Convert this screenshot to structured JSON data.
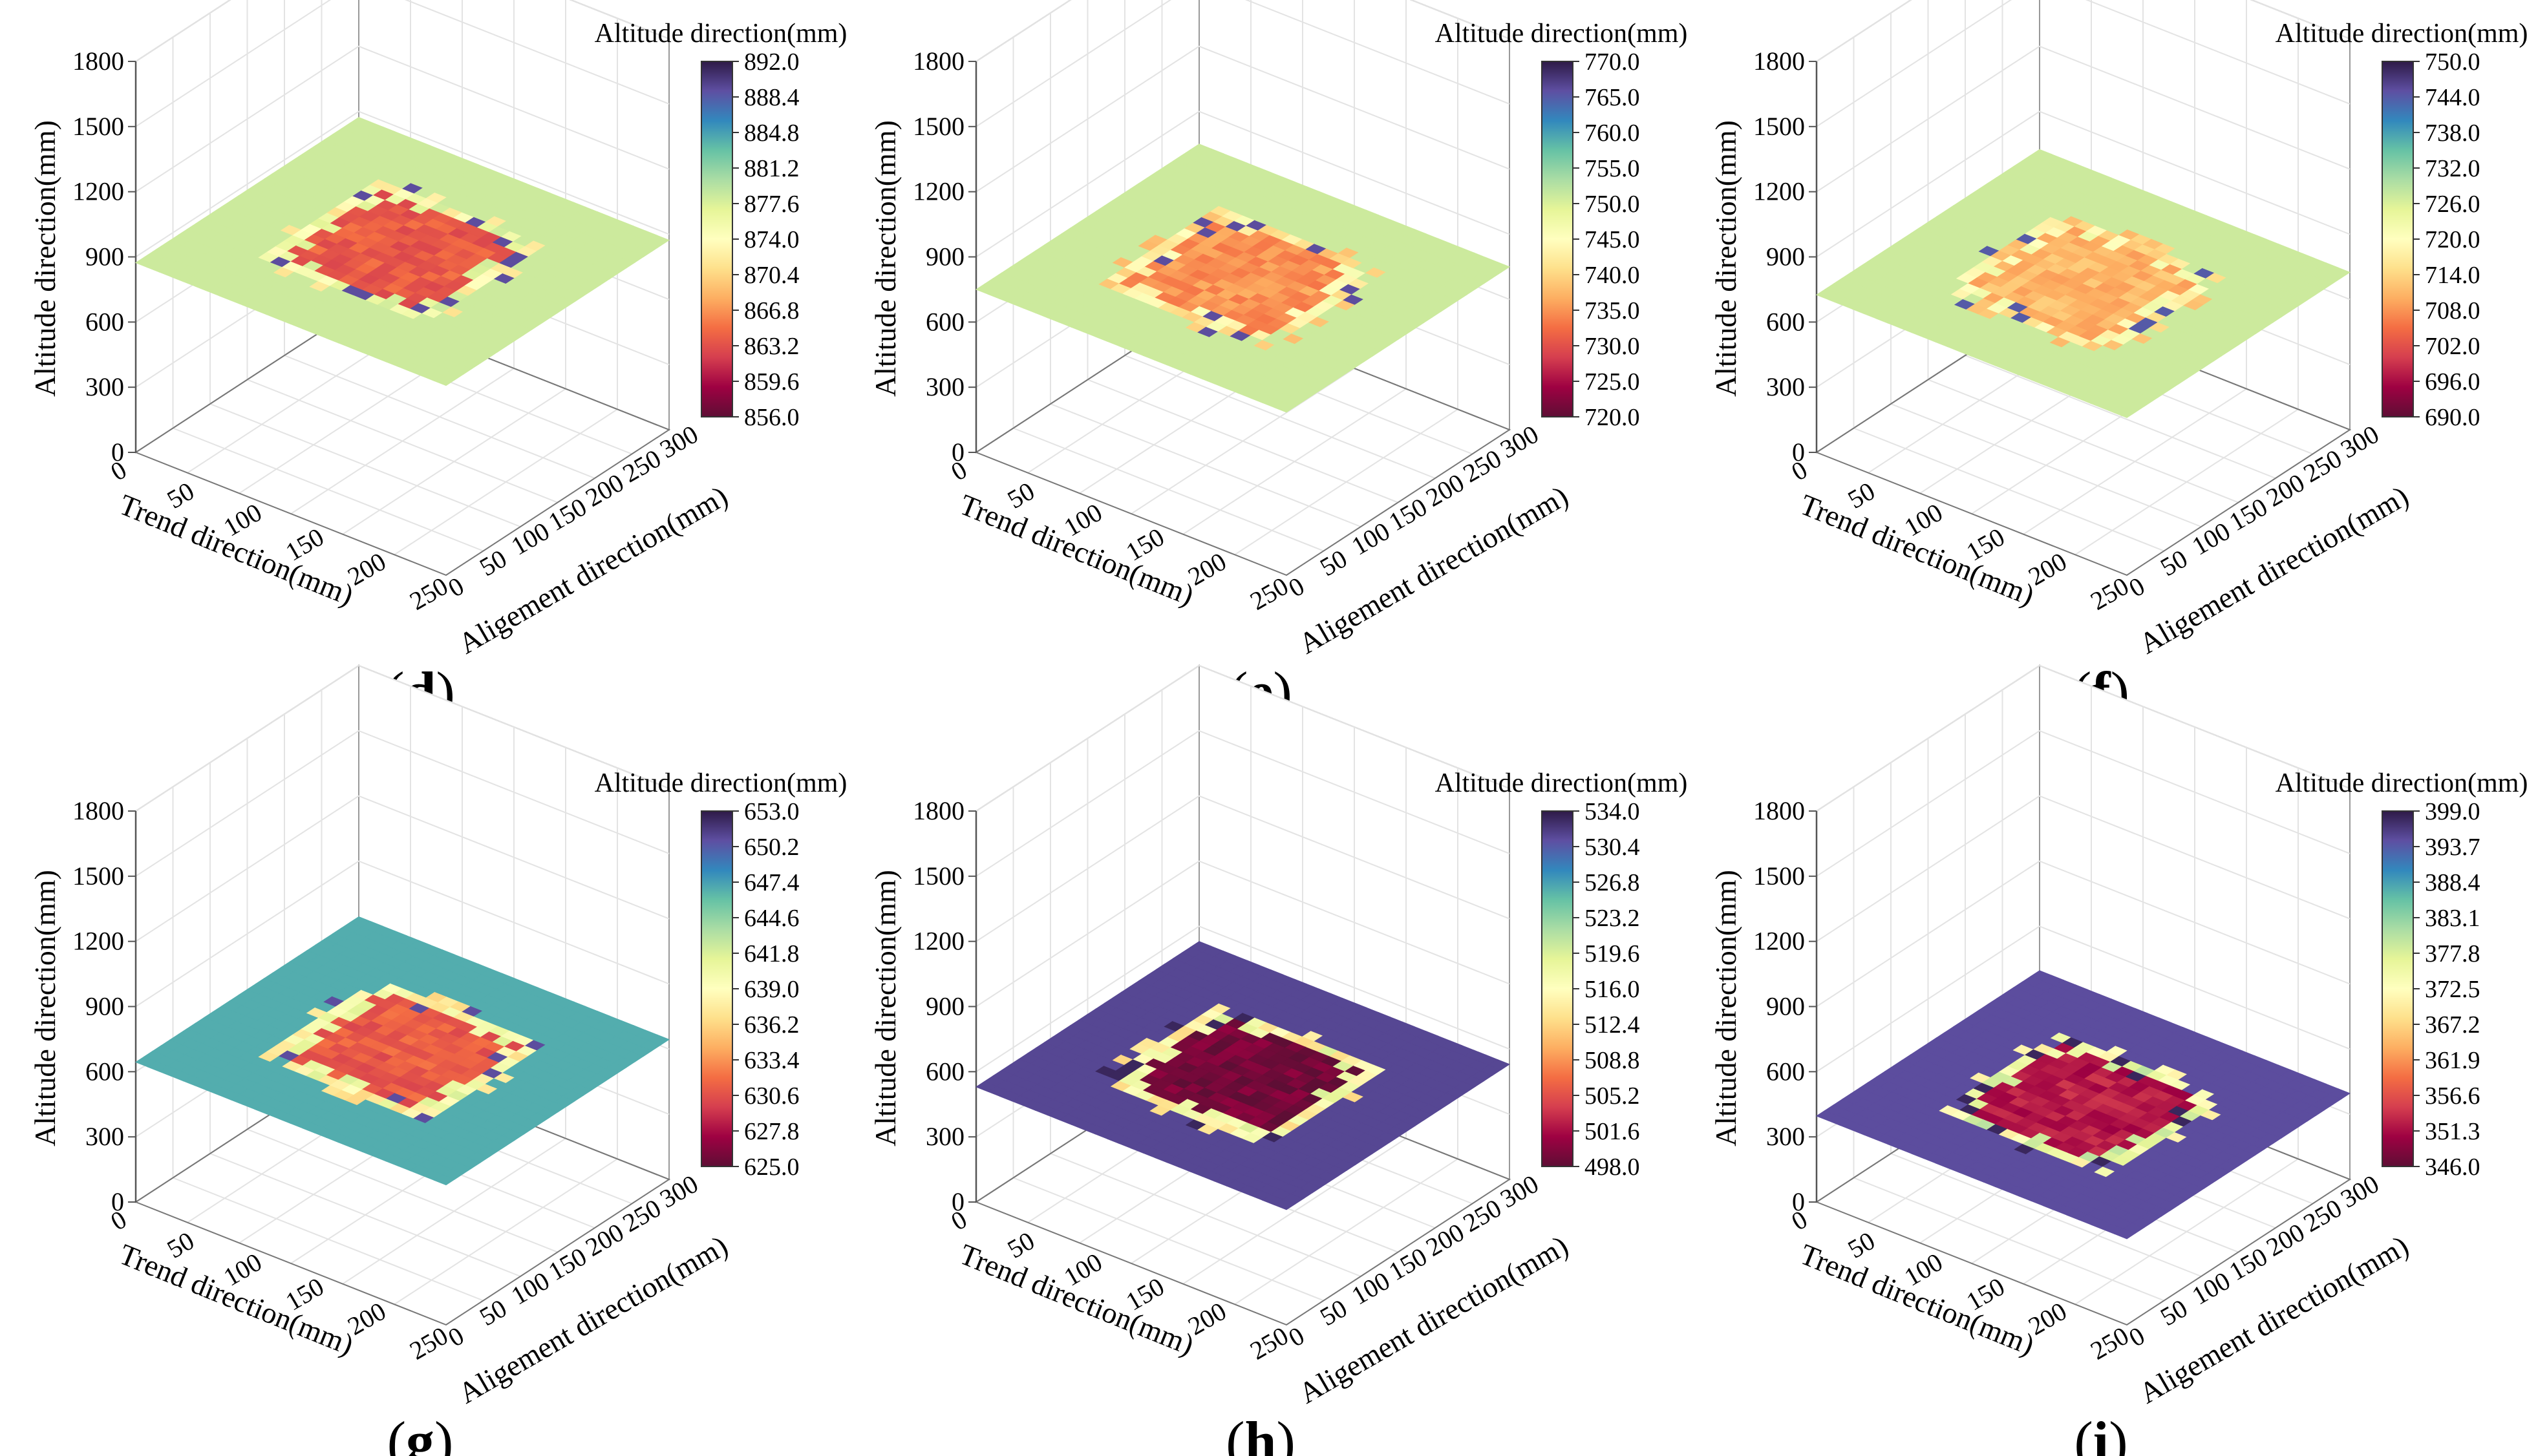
{
  "chart_data": [
    {
      "panel": "d",
      "type": "heatmap",
      "plane_z": 873,
      "hot_level": 0.22,
      "rim_level": 0.52,
      "base_level": 0.62,
      "spot_level": 0.92,
      "colorbar": {
        "title": "Altitude direction(mm)",
        "ticks": [
          "892.0",
          "888.4",
          "884.8",
          "881.2",
          "877.6",
          "874.0",
          "870.4",
          "866.8",
          "863.2",
          "859.6",
          "856.0"
        ],
        "range": [
          856.0,
          892.0
        ]
      },
      "zlabel": "Altitude direction(mm)",
      "xlabel": "Trend direction(mm)",
      "ylabel": "Aligement direction(mm)",
      "zticks": [
        "1800",
        "1500",
        "1200",
        "900",
        "600",
        "300",
        "0"
      ],
      "xticks": [
        "0",
        "50",
        "100",
        "150",
        "200",
        "250"
      ],
      "yticks": [
        "0",
        "50",
        "100",
        "150",
        "200",
        "250",
        "300"
      ]
    },
    {
      "panel": "e",
      "type": "heatmap",
      "plane_z": 750,
      "hot_level": 0.3,
      "rim_level": 0.45,
      "base_level": 0.62,
      "spot_level": 0.92,
      "colorbar": {
        "title": "Altitude direction(mm)",
        "ticks": [
          "770.0",
          "765.0",
          "760.0",
          "755.0",
          "750.0",
          "745.0",
          "740.0",
          "735.0",
          "730.0",
          "725.0",
          "720.0"
        ],
        "range": [
          720.0,
          770.0
        ]
      },
      "zlabel": "Altitude direction(mm)",
      "xlabel": "Trend direction(mm)",
      "ylabel": "Aligement direction(mm)",
      "zticks": [
        "1800",
        "1500",
        "1200",
        "900",
        "600",
        "300",
        "0"
      ],
      "xticks": [
        "0",
        "50",
        "100",
        "150",
        "200",
        "250"
      ],
      "yticks": [
        "0",
        "50",
        "100",
        "150",
        "200",
        "250",
        "300"
      ]
    },
    {
      "panel": "f",
      "type": "heatmap",
      "plane_z": 725,
      "hot_level": 0.35,
      "rim_level": 0.45,
      "base_level": 0.62,
      "spot_level": 0.9,
      "colorbar": {
        "title": "Altitude direction(mm)",
        "ticks": [
          "750.0",
          "744.0",
          "738.0",
          "732.0",
          "726.0",
          "720.0",
          "714.0",
          "708.0",
          "702.0",
          "696.0",
          "690.0"
        ],
        "range": [
          690.0,
          750.0
        ]
      },
      "zlabel": "Altitude direction(mm)",
      "xlabel": "Trend direction(mm)",
      "ylabel": "Aligement direction(mm)",
      "zticks": [
        "1800",
        "1500",
        "1200",
        "900",
        "600",
        "300",
        "0"
      ],
      "xticks": [
        "0",
        "50",
        "100",
        "150",
        "200",
        "250"
      ],
      "yticks": [
        "0",
        "50",
        "100",
        "150",
        "200",
        "250",
        "300"
      ]
    },
    {
      "panel": "g",
      "type": "heatmap",
      "plane_z": 644,
      "hot_level": 0.22,
      "rim_level": 0.5,
      "base_level": 0.78,
      "spot_level": 0.92,
      "colorbar": {
        "title": "Altitude direction(mm)",
        "ticks": [
          "653.0",
          "650.2",
          "647.4",
          "644.6",
          "641.8",
          "639.0",
          "636.2",
          "633.4",
          "630.6",
          "627.8",
          "625.0"
        ],
        "range": [
          625.0,
          653.0
        ]
      },
      "zlabel": "Altitude direction(mm)",
      "xlabel": "Trend direction(mm)",
      "ylabel": "Aligement direction(mm)",
      "zticks": [
        "1800",
        "1500",
        "1200",
        "900",
        "600",
        "300",
        "0"
      ],
      "xticks": [
        "0",
        "50",
        "100",
        "150",
        "200",
        "250"
      ],
      "yticks": [
        "0",
        "50",
        "100",
        "150",
        "200",
        "250",
        "300"
      ]
    },
    {
      "panel": "h",
      "type": "heatmap",
      "plane_z": 530,
      "hot_level": 0.03,
      "rim_level": 0.5,
      "base_level": 0.93,
      "spot_level": 0.98,
      "colorbar": {
        "title": "Altitude direction(mm)",
        "ticks": [
          "534.0",
          "530.4",
          "526.8",
          "523.2",
          "519.6",
          "516.0",
          "512.4",
          "508.8",
          "505.2",
          "501.6",
          "498.0"
        ],
        "range": [
          498.0,
          534.0
        ]
      },
      "zlabel": "Altitude direction(mm)",
      "xlabel": "Trend direction(mm)",
      "ylabel": "Aligement direction(mm)",
      "zticks": [
        "1800",
        "1500",
        "1200",
        "900",
        "600",
        "300",
        "0"
      ],
      "xticks": [
        "0",
        "50",
        "100",
        "150",
        "200",
        "250"
      ],
      "yticks": [
        "0",
        "50",
        "100",
        "150",
        "200",
        "250",
        "300"
      ]
    },
    {
      "panel": "i",
      "type": "heatmap",
      "plane_z": 396,
      "hot_level": 0.12,
      "rim_level": 0.55,
      "base_level": 0.92,
      "spot_level": 0.98,
      "colorbar": {
        "title": "Altitude direction(mm)",
        "ticks": [
          "399.0",
          "393.7",
          "388.4",
          "383.1",
          "377.8",
          "372.5",
          "367.2",
          "361.9",
          "356.6",
          "351.3",
          "346.0"
        ],
        "range": [
          346.0,
          399.0
        ]
      },
      "zlabel": "Altitude direction(mm)",
      "xlabel": "Trend direction(mm)",
      "ylabel": "Aligement direction(mm)",
      "zticks": [
        "1800",
        "1500",
        "1200",
        "900",
        "600",
        "300",
        "0"
      ],
      "xticks": [
        "0",
        "50",
        "100",
        "150",
        "200",
        "250"
      ],
      "yticks": [
        "0",
        "50",
        "100",
        "150",
        "200",
        "250",
        "300"
      ]
    }
  ],
  "palette": [
    "#5e0e35",
    "#9e0142",
    "#d53e4f",
    "#f46d43",
    "#fdae61",
    "#fee08b",
    "#ffffbf",
    "#e6f598",
    "#abdda4",
    "#66c2a5",
    "#3288bd",
    "#5e4fa2",
    "#2e1a47"
  ]
}
